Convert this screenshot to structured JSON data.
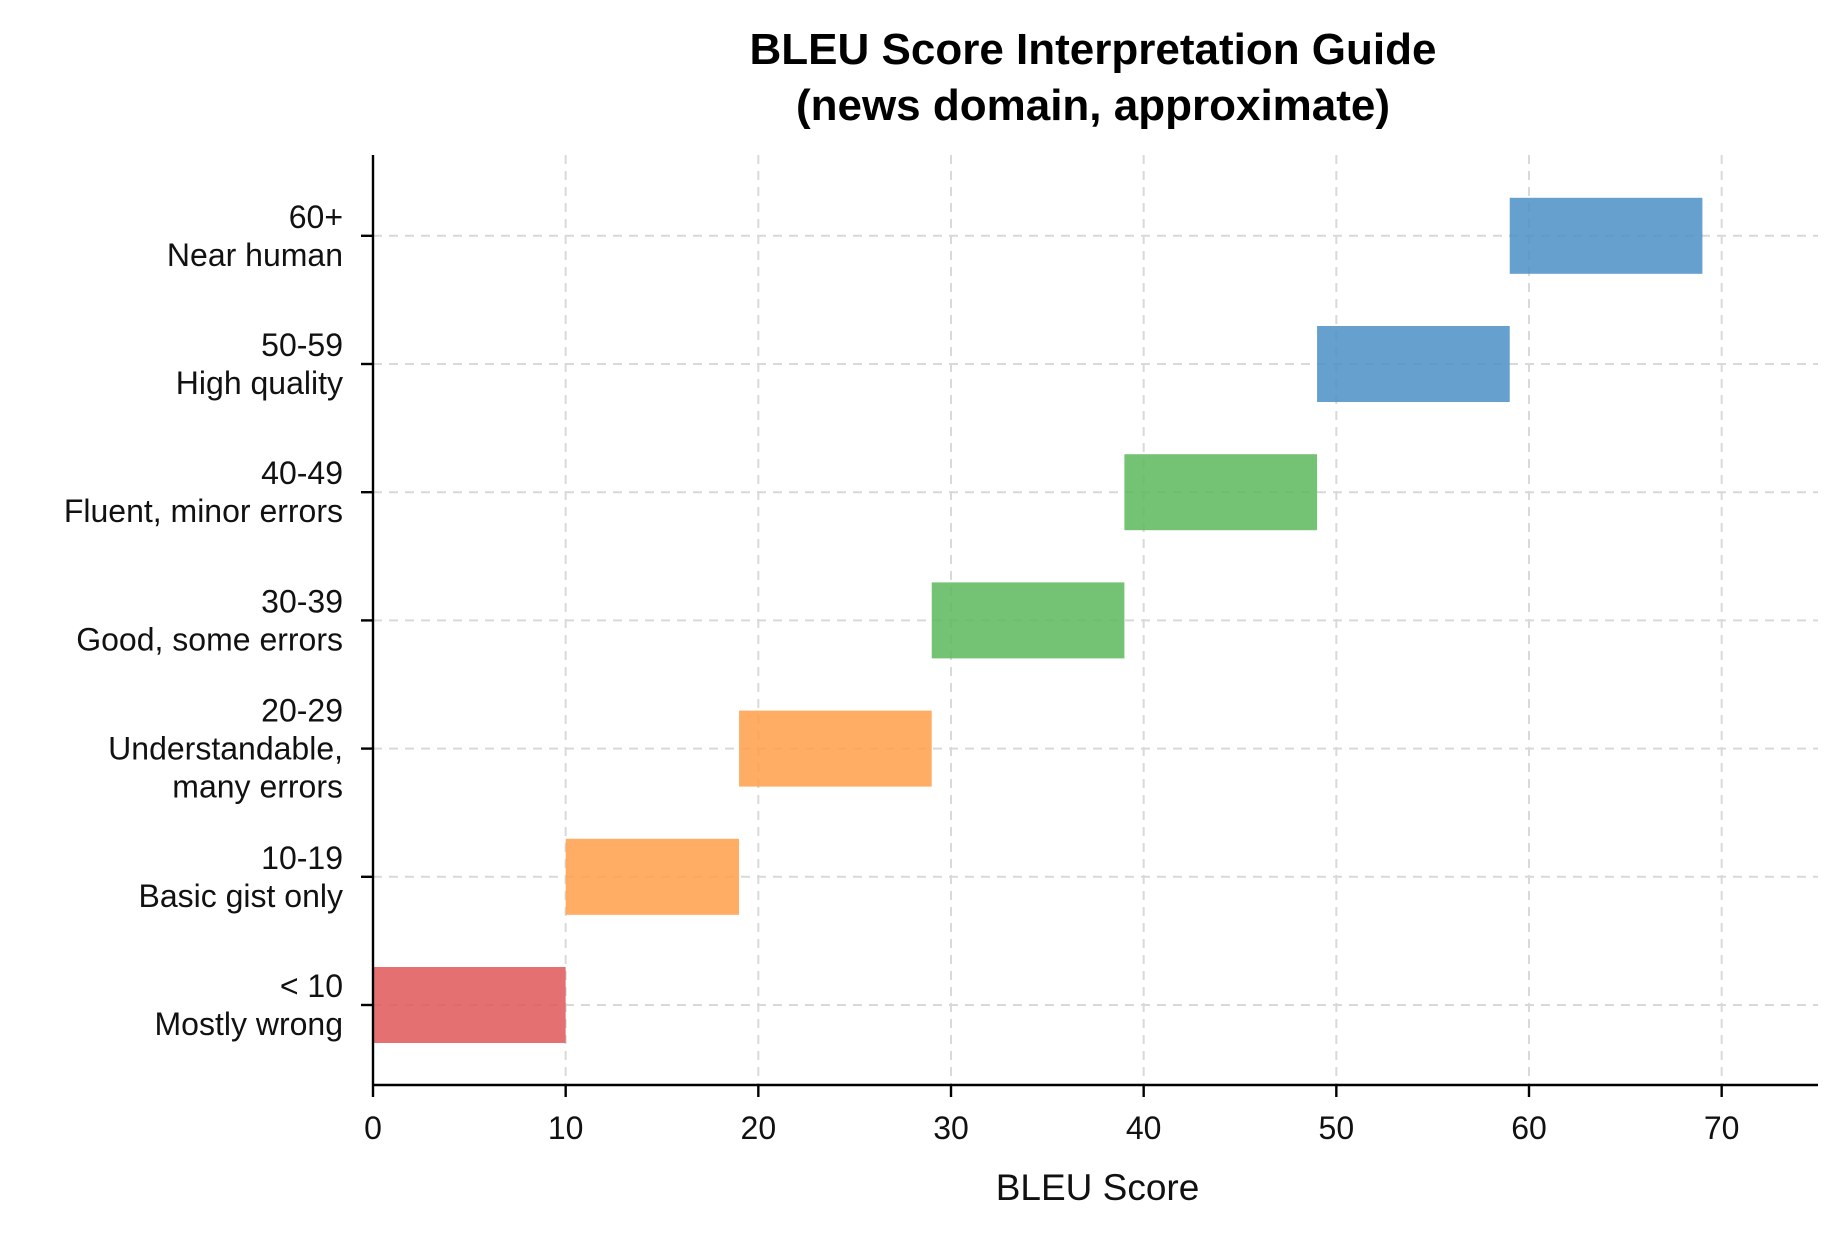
{
  "chart_data": {
    "type": "bar",
    "orientation": "horizontal",
    "title": "BLEU Score Interpretation Guide\n(news domain, approximate)",
    "xlabel": "BLEU Score",
    "ylabel": "",
    "xlim": [
      0,
      75
    ],
    "xticks": [
      0,
      10,
      20,
      30,
      40,
      50,
      60,
      70
    ],
    "grid": true,
    "bars": [
      {
        "label": "< 10\nMostly wrong",
        "start": 0,
        "end": 10,
        "color": "#e15759"
      },
      {
        "label": "10-19\nBasic gist only",
        "start": 10,
        "end": 19,
        "color": "#ff9f4a"
      },
      {
        "label": "20-29\nUnderstandable,\nmany errors",
        "start": 19,
        "end": 29,
        "color": "#ff9f4a"
      },
      {
        "label": "30-39\nGood, some errors",
        "start": 29,
        "end": 39,
        "color": "#5cb85c"
      },
      {
        "label": "40-49\nFluent, minor errors",
        "start": 39,
        "end": 49,
        "color": "#5cb85c"
      },
      {
        "label": "50-59\nHigh quality",
        "start": 49,
        "end": 59,
        "color": "#4a8fc6"
      },
      {
        "label": "60+\nNear human",
        "start": 59,
        "end": 69,
        "color": "#4a8fc6"
      }
    ]
  }
}
